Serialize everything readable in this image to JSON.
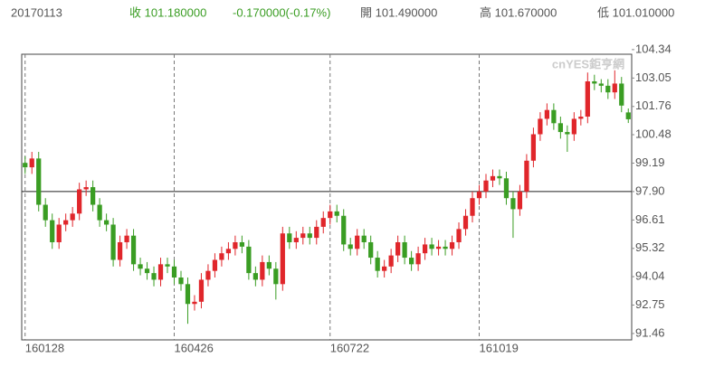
{
  "chart_data": {
    "type": "candlestick",
    "header": {
      "date": "20170113",
      "close": "收 101.180000",
      "change": "-0.170000(-0.17%)",
      "open": "開 101.490000",
      "high": "高 101.670000",
      "low": "低 101.010000"
    },
    "watermark": "cnYES鉅亨網",
    "up_color": "#e0262b",
    "down_color": "#3a9d23",
    "change_color": "#3a9d23",
    "ylim": [
      91.17,
      104.13
    ],
    "yticks": [
      91.46,
      92.75,
      94.04,
      95.32,
      96.61,
      {
        "value": 97.9,
        "label": "97.90"
      },
      99.19,
      100.48,
      101.76,
      103.05,
      104.34
    ],
    "reference_line": 97.9,
    "xticks": [
      {
        "value": 0,
        "label": "160128"
      },
      {
        "value": 22,
        "label": "160426"
      },
      {
        "value": 45,
        "label": "160722"
      },
      {
        "value": 67,
        "label": "161019"
      }
    ],
    "open": [
      99.2,
      99.0,
      99.4,
      97.3,
      96.6,
      95.6,
      96.4,
      96.6,
      96.9,
      98.0,
      98.1,
      97.3,
      96.6,
      96.4,
      94.8,
      95.6,
      95.9,
      94.6,
      94.4,
      94.2,
      93.9,
      94.6,
      94.5,
      94.0,
      93.7,
      92.8,
      92.9,
      93.9,
      94.3,
      94.8,
      95.1,
      95.3,
      95.6,
      95.4,
      94.2,
      93.9,
      94.7,
      94.4,
      93.7,
      96.0,
      95.6,
      95.8,
      96.0,
      95.8,
      96.3,
      96.7,
      97.0,
      96.8,
      95.5,
      95.3,
      95.9,
      95.6,
      94.9,
      94.3,
      94.5,
      95.0,
      95.6,
      94.9,
      94.6,
      95.1,
      95.5,
      95.3,
      95.4,
      95.3,
      95.6,
      96.2,
      96.8,
      97.6,
      97.9,
      98.4,
      98.6,
      98.5,
      97.6,
      97.1,
      97.9,
      99.3,
      100.5,
      101.2,
      101.6,
      101.0,
      100.6,
      100.5,
      101.2,
      101.3,
      102.9,
      102.8,
      102.7,
      102.4,
      102.8,
      101.49
    ],
    "high": [
      99.5,
      99.7,
      99.7,
      97.6,
      96.9,
      96.7,
      96.9,
      97.2,
      98.3,
      98.4,
      98.4,
      97.6,
      96.9,
      96.7,
      95.9,
      96.2,
      96.2,
      94.9,
      94.7,
      94.5,
      94.9,
      94.9,
      94.8,
      94.3,
      94.0,
      93.2,
      94.2,
      94.6,
      95.1,
      95.4,
      95.6,
      95.9,
      95.9,
      95.7,
      94.5,
      95.0,
      95.0,
      94.7,
      96.3,
      96.3,
      96.1,
      96.3,
      96.3,
      96.6,
      97.0,
      97.3,
      97.3,
      97.1,
      95.8,
      96.2,
      96.2,
      95.9,
      95.2,
      94.8,
      95.3,
      95.9,
      95.9,
      95.2,
      95.4,
      95.8,
      95.8,
      95.7,
      95.7,
      95.9,
      96.5,
      97.1,
      97.9,
      98.2,
      98.7,
      98.9,
      98.9,
      98.8,
      97.9,
      98.2,
      99.6,
      100.8,
      101.5,
      101.9,
      101.9,
      101.3,
      100.9,
      101.5,
      101.6,
      103.3,
      103.2,
      103.0,
      103.0,
      103.4,
      103.1,
      101.67
    ],
    "low": [
      98.7,
      98.7,
      97.0,
      96.3,
      95.3,
      95.3,
      96.1,
      96.3,
      96.6,
      97.7,
      97.0,
      96.3,
      96.1,
      94.5,
      94.5,
      95.3,
      94.3,
      94.1,
      93.9,
      93.6,
      93.6,
      94.2,
      93.7,
      93.4,
      91.9,
      92.5,
      92.6,
      93.6,
      94.0,
      94.5,
      94.8,
      95.0,
      95.1,
      93.9,
      93.6,
      93.6,
      94.1,
      93.0,
      93.4,
      95.3,
      95.3,
      95.5,
      95.5,
      95.5,
      96.0,
      96.4,
      96.5,
      95.2,
      95.0,
      95.0,
      95.3,
      94.6,
      94.0,
      94.0,
      94.2,
      94.7,
      94.6,
      94.3,
      94.3,
      94.8,
      95.0,
      95.0,
      95.0,
      95.0,
      95.3,
      95.9,
      96.5,
      97.3,
      97.6,
      98.1,
      98.2,
      97.3,
      95.8,
      96.8,
      97.6,
      99.0,
      100.2,
      100.9,
      100.7,
      100.3,
      99.7,
      100.2,
      100.9,
      101.0,
      102.5,
      102.4,
      102.1,
      102.1,
      101.5,
      101.01
    ],
    "close": [
      99.0,
      99.4,
      97.3,
      96.6,
      95.6,
      96.4,
      96.6,
      96.9,
      98.0,
      98.1,
      97.3,
      96.6,
      96.4,
      94.8,
      95.6,
      95.9,
      94.6,
      94.4,
      94.2,
      93.9,
      94.6,
      94.5,
      94.0,
      93.7,
      92.8,
      92.9,
      93.9,
      94.3,
      94.8,
      95.1,
      95.3,
      95.6,
      95.4,
      94.2,
      93.9,
      94.7,
      94.4,
      93.7,
      96.0,
      95.6,
      95.8,
      96.0,
      95.8,
      96.3,
      96.7,
      97.0,
      96.8,
      95.5,
      95.3,
      95.9,
      95.6,
      94.9,
      94.3,
      94.5,
      95.0,
      95.6,
      94.9,
      94.6,
      95.1,
      95.5,
      95.3,
      95.4,
      95.3,
      95.6,
      96.2,
      96.8,
      97.6,
      97.9,
      98.4,
      98.6,
      98.5,
      97.6,
      97.1,
      97.9,
      99.3,
      100.5,
      101.2,
      101.6,
      101.0,
      100.6,
      100.5,
      101.2,
      101.3,
      102.9,
      102.8,
      102.7,
      102.4,
      102.8,
      101.8,
      101.18
    ]
  }
}
